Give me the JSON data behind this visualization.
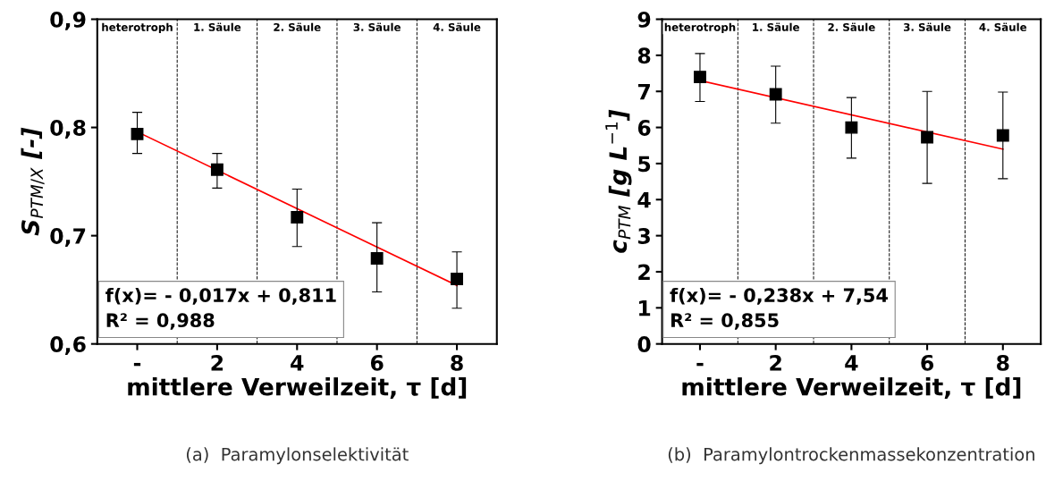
{
  "chart_data": [
    {
      "type": "scatter",
      "title": "(a)  Paramylonselektivität",
      "xlabel": "mittlere Verweilzeit, τ [d]",
      "ylabel": "S$_{PTM/X}$ [-]",
      "xlim": [
        -1,
        9
      ],
      "xticks": [
        {
          "value": 0,
          "label": "-"
        },
        2,
        4,
        6,
        8
      ],
      "ylim": [
        0.6,
        0.9
      ],
      "yticks": [
        {
          "value": 0.6,
          "label": "0,6"
        },
        {
          "value": 0.7,
          "label": "0,7"
        },
        {
          "value": 0.8,
          "label": "0,8"
        },
        {
          "value": 0.9,
          "label": "0,9"
        }
      ],
      "grid": false,
      "legend": false,
      "marker": "square",
      "series": [
        {
          "type": "scatter",
          "color": "#000000",
          "x": [
            0,
            2,
            4,
            6,
            8
          ],
          "values": [
            0.794,
            0.761,
            0.717,
            0.679,
            0.66
          ],
          "errors": [
            [
              0.776,
              0.814
            ],
            [
              0.744,
              0.776
            ],
            [
              0.69,
              0.743
            ],
            [
              0.648,
              0.712
            ],
            [
              0.633,
              0.685
            ]
          ]
        },
        {
          "type": "line",
          "marker": "none",
          "color": "#ff0000",
          "x": [
            0,
            8
          ],
          "values": [
            0.796,
            0.654
          ]
        }
      ],
      "ref_lines": [
        {
          "axis": "x",
          "value": 1,
          "color": "#000000",
          "line_style": "dashed"
        },
        {
          "axis": "x",
          "value": 3,
          "color": "#000000",
          "line_style": "dashed"
        },
        {
          "axis": "x",
          "value": 5,
          "color": "#000000",
          "line_style": "dashed"
        },
        {
          "axis": "x",
          "value": 7,
          "color": "#000000",
          "line_style": "dashed"
        }
      ],
      "annotations": [
        "heterotroph",
        "1. Säule",
        "2. Säule",
        "3. Säule",
        "4. Säule",
        "f(x)= - 0,017x + 0,811\nR² = 0,988"
      ]
    },
    {
      "type": "scatter",
      "title": "(b)  Paramylontrockenmassekonzentration",
      "xlabel": "mittlere Verweilzeit, τ [d]",
      "ylabel": "c$_{PTM}$ [g L$^{−1}$]",
      "xlim": [
        -1,
        9
      ],
      "xticks": [
        {
          "value": 0,
          "label": "-"
        },
        2,
        4,
        6,
        8
      ],
      "ylim": [
        0,
        9
      ],
      "yticks": [
        0,
        1,
        2,
        3,
        4,
        5,
        6,
        7,
        8,
        9
      ],
      "grid": false,
      "legend": false,
      "marker": "square",
      "series": [
        {
          "type": "scatter",
          "color": "#000000",
          "x": [
            0,
            2,
            4,
            6,
            8
          ],
          "values": [
            7.4,
            6.92,
            6.0,
            5.73,
            5.78
          ],
          "errors": [
            [
              6.72,
              8.05
            ],
            [
              6.12,
              7.7
            ],
            [
              5.15,
              6.83
            ],
            [
              4.45,
              7.0
            ],
            [
              4.58,
              6.98
            ]
          ]
        },
        {
          "type": "line",
          "marker": "none",
          "color": "#ff0000",
          "x": [
            0,
            8
          ],
          "values": [
            7.3,
            5.4
          ]
        }
      ],
      "ref_lines": [
        {
          "axis": "x",
          "value": 1,
          "color": "#000000",
          "line_style": "dashed"
        },
        {
          "axis": "x",
          "value": 3,
          "color": "#000000",
          "line_style": "dashed"
        },
        {
          "axis": "x",
          "value": 5,
          "color": "#000000",
          "line_style": "dashed"
        },
        {
          "axis": "x",
          "value": 7,
          "color": "#000000",
          "line_style": "dashed"
        }
      ],
      "annotations": [
        "heterotroph",
        "1. Säule",
        "2. Säule",
        "3. Säule",
        "4. Säule",
        "f(x)= - 0,238x + 7,54\nR² = 0,855"
      ]
    }
  ]
}
